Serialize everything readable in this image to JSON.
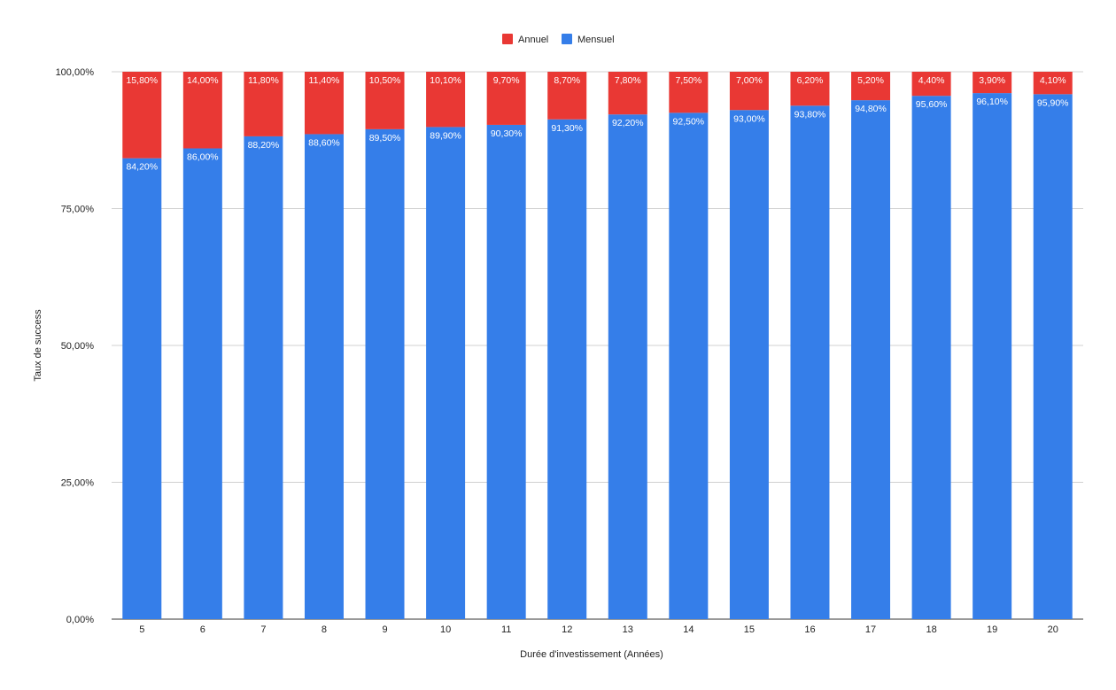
{
  "chart_data": {
    "type": "bar",
    "stacked": true,
    "title": "",
    "xlabel": "Durée d'investissement (Années)",
    "ylabel": "Taux de success",
    "ylim": [
      0,
      100
    ],
    "yticks": [
      0,
      25,
      50,
      75,
      100
    ],
    "ytick_labels": [
      "0,00%",
      "25,00%",
      "50,00%",
      "75,00%",
      "100,00%"
    ],
    "grid": true,
    "legend_position": "top-center",
    "categories": [
      "5",
      "6",
      "7",
      "8",
      "9",
      "10",
      "11",
      "12",
      "13",
      "14",
      "15",
      "16",
      "17",
      "18",
      "19",
      "20"
    ],
    "series": [
      {
        "name": "Mensuel",
        "color": "#357ee9",
        "values": [
          84.2,
          86.0,
          88.2,
          88.6,
          89.5,
          89.9,
          90.3,
          91.3,
          92.2,
          92.5,
          93.0,
          93.8,
          94.8,
          95.6,
          96.1,
          95.9
        ],
        "labels": [
          "84,20%",
          "86,00%",
          "88,20%",
          "88,60%",
          "89,50%",
          "89,90%",
          "90,30%",
          "91,30%",
          "92,20%",
          "92,50%",
          "93,00%",
          "93,80%",
          "94,80%",
          "95,60%",
          "96,10%",
          "95,90%"
        ]
      },
      {
        "name": "Annuel",
        "color": "#e93834",
        "values": [
          15.8,
          14.0,
          11.8,
          11.4,
          10.5,
          10.1,
          9.7,
          8.7,
          7.8,
          7.5,
          7.0,
          6.2,
          5.2,
          4.4,
          3.9,
          4.1
        ],
        "labels": [
          "15,80%",
          "14,00%",
          "11,80%",
          "11,40%",
          "10,50%",
          "10,10%",
          "9,70%",
          "8,70%",
          "7,80%",
          "7,50%",
          "7,00%",
          "6,20%",
          "5,20%",
          "4,40%",
          "3,90%",
          "4,10%"
        ]
      }
    ],
    "legend": [
      "Annuel",
      "Mensuel"
    ]
  }
}
